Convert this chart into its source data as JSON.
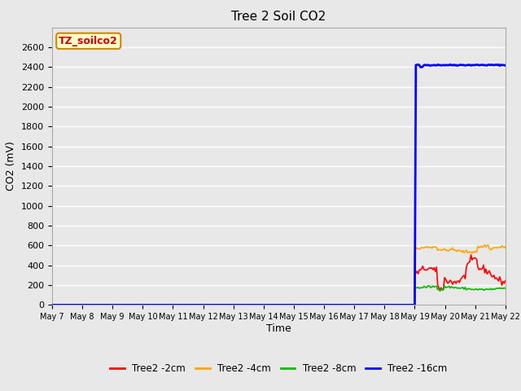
{
  "title": "Tree 2 Soil CO2",
  "ylabel": "CO2 (mV)",
  "xlabel": "Time",
  "annotation_text": "TZ_soilco2",
  "annotation_bg": "#ffffcc",
  "annotation_border": "#cc8800",
  "annotation_text_color": "#cc0000",
  "ylim": [
    0,
    2800
  ],
  "yticks": [
    0,
    200,
    400,
    600,
    800,
    1000,
    1200,
    1400,
    1600,
    1800,
    2000,
    2200,
    2400,
    2600
  ],
  "xlim_start": 0,
  "xlim_end": 15,
  "xtick_labels": [
    "May 7",
    "May 8",
    "May 9",
    "May 10",
    "May 11",
    "May 12",
    "May 13",
    "May 14",
    "May 15",
    "May 16",
    "May 17",
    "May 18",
    "May 19",
    "May 20",
    "May 21",
    "May 22"
  ],
  "bg_color": "#e8e8e8",
  "plot_bg_color": "#e8e8e8",
  "grid_color": "#ffffff",
  "series_colors": {
    "Tree2 -2cm": "#ff0000",
    "Tree2 -4cm": "#ffa500",
    "Tree2 -8cm": "#00bb00",
    "Tree2 -16cm": "#0000ff"
  },
  "legend_labels": [
    "Tree2 -2cm",
    "Tree2 -4cm",
    "Tree2 -8cm",
    "Tree2 -16cm"
  ],
  "legend_colors": [
    "#ff0000",
    "#ffa500",
    "#00bb00",
    "#0000ff"
  ]
}
